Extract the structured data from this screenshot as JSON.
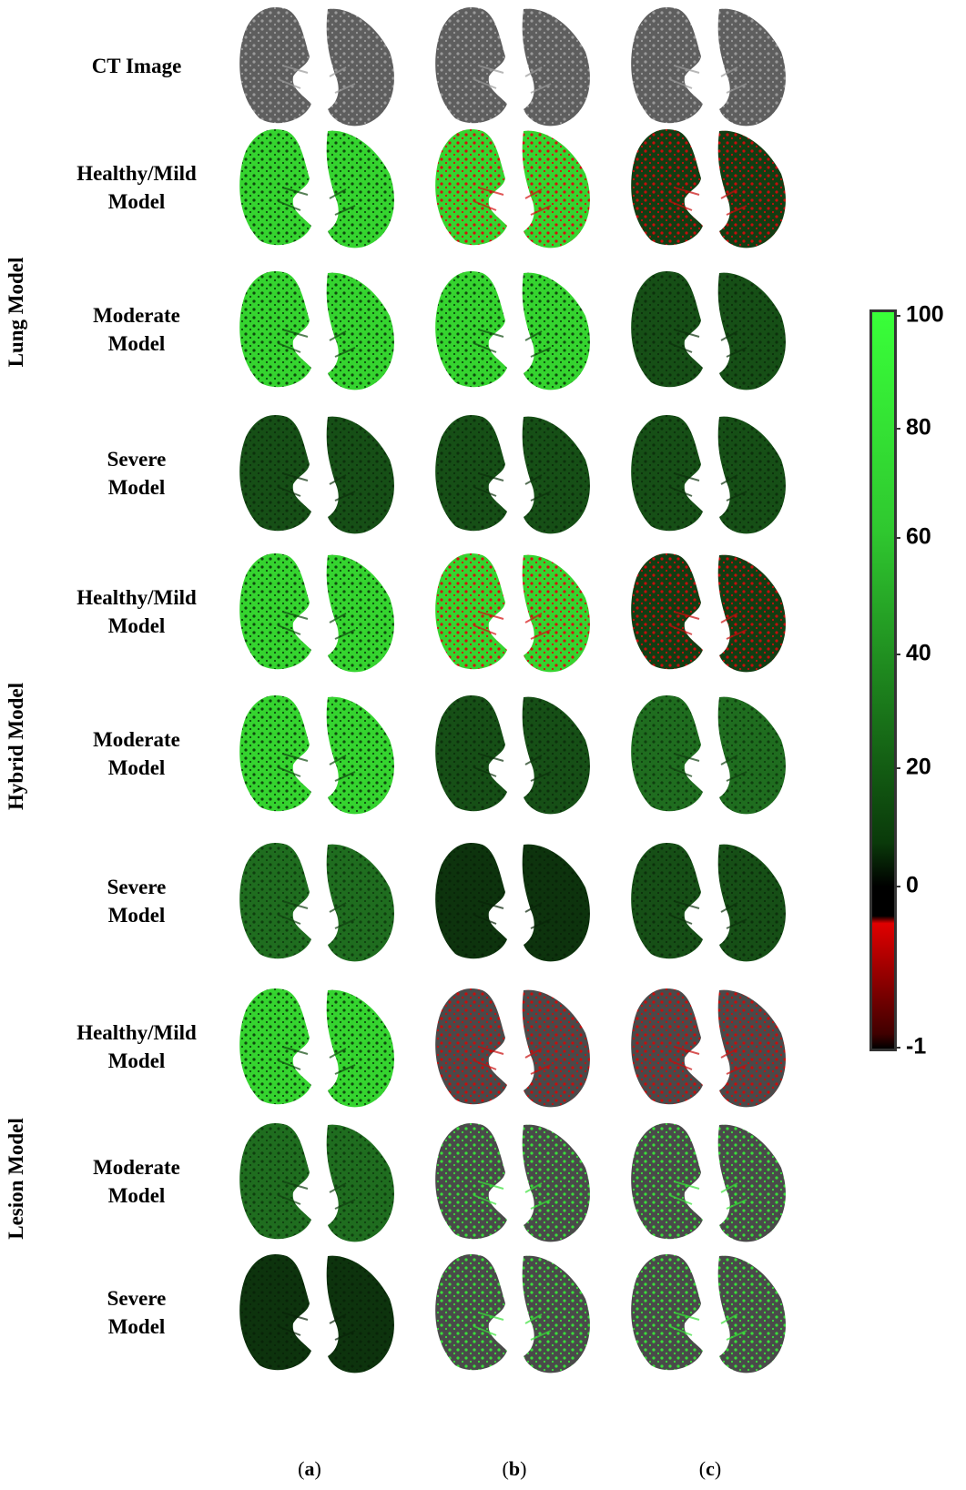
{
  "col_labels": [
    {
      "prefix": "(",
      "letter": "a",
      "suffix": ")"
    },
    {
      "prefix": "(",
      "letter": "b",
      "suffix": ")"
    },
    {
      "prefix": "(",
      "letter": "c",
      "suffix": ")"
    }
  ],
  "groups": [
    "Lung Model",
    "Hybrid Model",
    "Lesion Model"
  ],
  "rows": [
    {
      "line1": "CT Image",
      "line2": "",
      "group": "",
      "styles": [
        "ct",
        "ct",
        "ct"
      ]
    },
    {
      "line1": "Healthy/Mild",
      "line2": "Model",
      "group": "Lung Model",
      "styles": [
        "bright",
        "bright-red",
        "red-mix"
      ]
    },
    {
      "line1": "Moderate",
      "line2": "Model",
      "group": "Lung Model",
      "styles": [
        "bright",
        "bright",
        "dark"
      ]
    },
    {
      "line1": "Severe",
      "line2": "Model",
      "group": "Lung Model",
      "styles": [
        "dark",
        "dark",
        "dark"
      ]
    },
    {
      "line1": "Healthy/Mild",
      "line2": "Model",
      "group": "Hybrid Model",
      "styles": [
        "bright",
        "bright-red",
        "red-mix"
      ]
    },
    {
      "line1": "Moderate",
      "line2": "Model",
      "group": "Hybrid Model",
      "styles": [
        "bright",
        "dark",
        "mid"
      ]
    },
    {
      "line1": "Severe",
      "line2": "Model",
      "group": "Hybrid Model",
      "styles": [
        "mid",
        "darkest",
        "dark"
      ]
    },
    {
      "line1": "Healthy/Mild",
      "line2": "Model",
      "group": "Lesion Model",
      "styles": [
        "bright",
        "ct-red",
        "ct-red"
      ]
    },
    {
      "line1": "Moderate",
      "line2": "Model",
      "group": "Lesion Model",
      "styles": [
        "mid",
        "ct-green",
        "ct-green"
      ]
    },
    {
      "line1": "Severe",
      "line2": "Model",
      "group": "Lesion Model",
      "styles": [
        "darkest",
        "ct-green",
        "ct-green"
      ]
    }
  ],
  "colorbar": {
    "ticks": [
      "100",
      "80",
      "60",
      "40",
      "20",
      "0",
      "-1"
    ],
    "colors": {
      "red": "#e00000",
      "black": "#000000",
      "dark_green": "#0a3a0a",
      "green": "#2fc72f",
      "bright_green": "#39ff39"
    }
  },
  "styles": {
    "ct": {
      "fill": "#5e5e5e",
      "spot": "#9a9a9a"
    },
    "bright": {
      "fill": "#35d42f",
      "spot": "#0e4a0e"
    },
    "bright-red": {
      "fill": "#35d42f",
      "spot": "#d40f0f"
    },
    "red-mix": {
      "fill": "#123d12",
      "spot": "#c80c0c"
    },
    "mid": {
      "fill": "#1f6d1f",
      "spot": "#0f3f0f"
    },
    "dark": {
      "fill": "#164f16",
      "spot": "#0c300c"
    },
    "darkest": {
      "fill": "#0d330d",
      "spot": "#082408"
    },
    "ct-red": {
      "fill": "#4a4a4a",
      "spot": "#c80c0c"
    },
    "ct-green": {
      "fill": "#4a4a4a",
      "spot": "#39e039"
    }
  }
}
